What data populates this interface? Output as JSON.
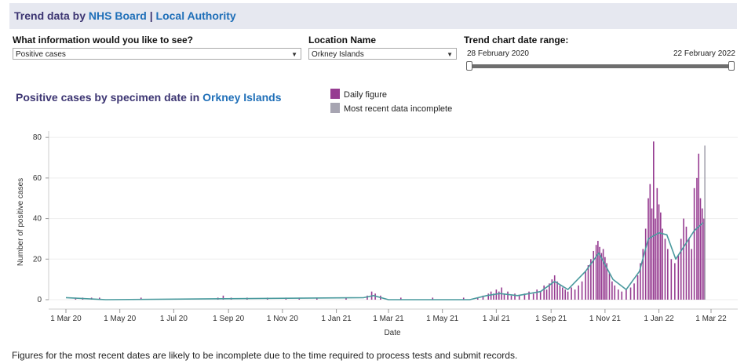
{
  "header": {
    "title_prefix": "Trend data by ",
    "title_nhs": "NHS Board",
    "title_sep": " | ",
    "title_la": "Local Authority"
  },
  "controls": {
    "info_label": "What information would you like to see?",
    "info_value": "Positive cases",
    "location_label": "Location Name",
    "location_value": "Orkney Islands",
    "range_label": "Trend chart date range:",
    "range_start": "28 February 2020",
    "range_end": "22 February 2022"
  },
  "chart": {
    "title_prefix": "Positive cases by specimen date in ",
    "title_location": "Orkney Islands",
    "legend": [
      {
        "label": "Daily figure",
        "color": "#963c91"
      },
      {
        "label": "Most recent data incomplete",
        "color": "#a7a5b2"
      }
    ]
  },
  "footer": {
    "note": "Figures for the most recent dates are likely to be incomplete due to the time required to process tests and submit records."
  },
  "chart_data": {
    "type": "bar",
    "title": "Positive cases by specimen date in Orkney Islands",
    "xlabel": "Date",
    "ylabel": "Number of positive cases",
    "ylim": [
      0,
      82
    ],
    "yticks": [
      0,
      20,
      40,
      60,
      80
    ],
    "xticks": [
      "1 Mar 20",
      "1 May 20",
      "1 Jul 20",
      "1 Sep 20",
      "1 Nov 20",
      "1 Jan 21",
      "1 Mar 21",
      "1 May 21",
      "1 Jul 21",
      "1 Sep 21",
      "1 Nov 21",
      "1 Jan 22",
      "1 Mar 22"
    ],
    "grid": "horizontal",
    "series": [
      {
        "name": "Daily figure",
        "color": "#963c91",
        "points": [
          [
            "2020-03-12",
            1
          ],
          [
            "2020-03-20",
            1
          ],
          [
            "2020-03-30",
            1
          ],
          [
            "2020-04-08",
            1
          ],
          [
            "2020-05-25",
            1
          ],
          [
            "2020-08-20",
            1
          ],
          [
            "2020-08-26",
            2
          ],
          [
            "2020-09-04",
            1
          ],
          [
            "2020-09-22",
            1
          ],
          [
            "2020-10-15",
            1
          ],
          [
            "2020-11-05",
            1
          ],
          [
            "2020-11-20",
            1
          ],
          [
            "2020-12-10",
            1
          ],
          [
            "2021-01-12",
            1
          ],
          [
            "2021-02-05",
            2
          ],
          [
            "2021-02-10",
            4
          ],
          [
            "2021-02-14",
            3
          ],
          [
            "2021-02-20",
            2
          ],
          [
            "2021-03-15",
            1
          ],
          [
            "2021-04-20",
            1
          ],
          [
            "2021-05-25",
            1
          ],
          [
            "2021-06-10",
            1
          ],
          [
            "2021-06-16",
            2
          ],
          [
            "2021-06-22",
            3
          ],
          [
            "2021-06-25",
            4
          ],
          [
            "2021-06-28",
            3
          ],
          [
            "2021-07-01",
            5
          ],
          [
            "2021-07-04",
            4
          ],
          [
            "2021-07-07",
            6
          ],
          [
            "2021-07-10",
            3
          ],
          [
            "2021-07-14",
            4
          ],
          [
            "2021-07-18",
            2
          ],
          [
            "2021-07-22",
            3
          ],
          [
            "2021-07-27",
            2
          ],
          [
            "2021-08-02",
            3
          ],
          [
            "2021-08-07",
            4
          ],
          [
            "2021-08-12",
            3
          ],
          [
            "2021-08-16",
            5
          ],
          [
            "2021-08-20",
            4
          ],
          [
            "2021-08-24",
            7
          ],
          [
            "2021-08-27",
            5
          ],
          [
            "2021-08-30",
            8
          ],
          [
            "2021-09-02",
            10
          ],
          [
            "2021-09-05",
            12
          ],
          [
            "2021-09-08",
            9
          ],
          [
            "2021-09-11",
            7
          ],
          [
            "2021-09-14",
            6
          ],
          [
            "2021-09-17",
            5
          ],
          [
            "2021-09-20",
            4
          ],
          [
            "2021-09-24",
            6
          ],
          [
            "2021-09-28",
            5
          ],
          [
            "2021-10-02",
            7
          ],
          [
            "2021-10-06",
            9
          ],
          [
            "2021-10-10",
            14
          ],
          [
            "2021-10-13",
            17
          ],
          [
            "2021-10-16",
            20
          ],
          [
            "2021-10-19",
            24
          ],
          [
            "2021-10-22",
            27
          ],
          [
            "2021-10-24",
            29
          ],
          [
            "2021-10-26",
            26
          ],
          [
            "2021-10-28",
            23
          ],
          [
            "2021-10-30",
            25
          ],
          [
            "2021-11-01",
            21
          ],
          [
            "2021-11-03",
            18
          ],
          [
            "2021-11-06",
            13
          ],
          [
            "2021-11-09",
            9
          ],
          [
            "2021-11-12",
            7
          ],
          [
            "2021-11-16",
            5
          ],
          [
            "2021-11-20",
            4
          ],
          [
            "2021-11-25",
            5
          ],
          [
            "2021-11-30",
            6
          ],
          [
            "2021-12-04",
            8
          ],
          [
            "2021-12-08",
            12
          ],
          [
            "2021-12-11",
            18
          ],
          [
            "2021-12-14",
            25
          ],
          [
            "2021-12-17",
            35
          ],
          [
            "2021-12-20",
            50
          ],
          [
            "2021-12-22",
            57
          ],
          [
            "2021-12-24",
            45
          ],
          [
            "2021-12-26",
            78
          ],
          [
            "2021-12-28",
            40
          ],
          [
            "2021-12-30",
            55
          ],
          [
            "2022-01-01",
            47
          ],
          [
            "2022-01-03",
            43
          ],
          [
            "2022-01-05",
            35
          ],
          [
            "2022-01-08",
            30
          ],
          [
            "2022-01-11",
            25
          ],
          [
            "2022-01-15",
            20
          ],
          [
            "2022-01-19",
            18
          ],
          [
            "2022-01-23",
            22
          ],
          [
            "2022-01-26",
            30
          ],
          [
            "2022-01-29",
            40
          ],
          [
            "2022-02-01",
            36
          ],
          [
            "2022-02-04",
            30
          ],
          [
            "2022-02-07",
            25
          ],
          [
            "2022-02-10",
            55
          ],
          [
            "2022-02-13",
            60
          ],
          [
            "2022-02-15",
            72
          ],
          [
            "2022-02-17",
            50
          ],
          [
            "2022-02-19",
            45
          ],
          [
            "2022-02-21",
            40
          ]
        ]
      },
      {
        "name": "Most recent data incomplete",
        "color": "#a7a5b2",
        "points": [
          [
            "2022-02-22",
            76
          ]
        ]
      }
    ],
    "trend_line": {
      "color": "#4a9a9e",
      "points": [
        [
          "2020-03-01",
          1
        ],
        [
          "2020-04-15",
          0
        ],
        [
          "2021-02-01",
          1
        ],
        [
          "2021-02-12",
          2
        ],
        [
          "2021-03-01",
          0
        ],
        [
          "2021-06-01",
          0
        ],
        [
          "2021-06-20",
          2
        ],
        [
          "2021-07-05",
          3
        ],
        [
          "2021-07-25",
          2
        ],
        [
          "2021-08-20",
          4
        ],
        [
          "2021-09-05",
          9
        ],
        [
          "2021-09-20",
          5
        ],
        [
          "2021-10-10",
          14
        ],
        [
          "2021-10-25",
          23
        ],
        [
          "2021-11-10",
          10
        ],
        [
          "2021-11-25",
          5
        ],
        [
          "2021-12-10",
          14
        ],
        [
          "2021-12-20",
          30
        ],
        [
          "2022-01-01",
          33
        ],
        [
          "2022-01-10",
          32
        ],
        [
          "2022-01-20",
          20
        ],
        [
          "2022-02-01",
          28
        ],
        [
          "2022-02-10",
          34
        ],
        [
          "2022-02-20",
          38
        ]
      ]
    }
  }
}
